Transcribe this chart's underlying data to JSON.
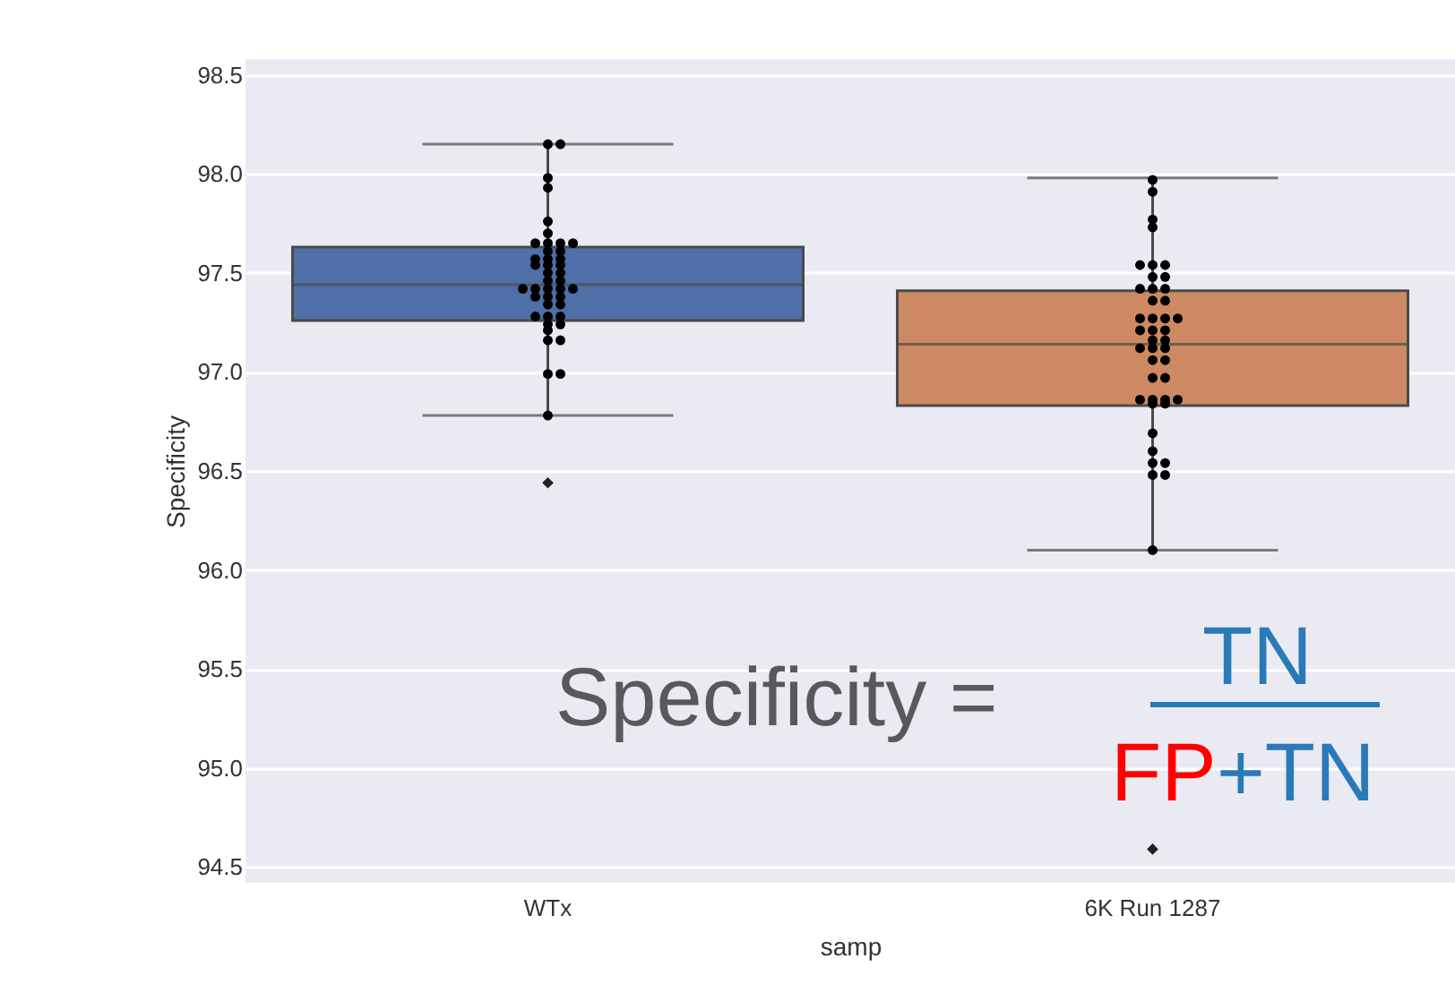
{
  "chart_data": {
    "type": "box",
    "xlabel": "samp",
    "ylabel": "Specificity",
    "categories": [
      "WTx",
      "6K Run 1287"
    ],
    "colors": [
      "#4f6fa8",
      "#cd8a62"
    ],
    "boxes": [
      {
        "low": 96.78,
        "q1": 97.26,
        "median": 97.44,
        "q3": 97.63,
        "high": 98.15,
        "outliers": [
          96.44
        ]
      },
      {
        "low": 96.1,
        "q1": 96.83,
        "median": 97.14,
        "q3": 97.41,
        "high": 97.98,
        "outliers": [
          94.59
        ]
      }
    ],
    "series": [
      {
        "type": "scatter",
        "color": "#000000",
        "x": [
          "WTx",
          "WTx",
          "WTx",
          "WTx",
          "WTx",
          "WTx",
          "WTx",
          "WTx",
          "WTx",
          "WTx",
          "WTx",
          "WTx",
          "WTx",
          "WTx",
          "WTx",
          "WTx",
          "WTx",
          "WTx",
          "WTx",
          "WTx",
          "WTx",
          "WTx",
          "WTx",
          "WTx",
          "WTx",
          "WTx",
          "WTx",
          "WTx",
          "WTx",
          "WTx",
          "WTx",
          "WTx",
          "WTx",
          "WTx",
          "WTx",
          "WTx",
          "WTx",
          "WTx",
          "WTx",
          "WTx",
          "WTx",
          "WTx",
          "WTx",
          "6K Run 1287",
          "6K Run 1287",
          "6K Run 1287",
          "6K Run 1287",
          "6K Run 1287",
          "6K Run 1287",
          "6K Run 1287",
          "6K Run 1287",
          "6K Run 1287",
          "6K Run 1287",
          "6K Run 1287",
          "6K Run 1287",
          "6K Run 1287",
          "6K Run 1287",
          "6K Run 1287",
          "6K Run 1287",
          "6K Run 1287",
          "6K Run 1287",
          "6K Run 1287",
          "6K Run 1287",
          "6K Run 1287",
          "6K Run 1287",
          "6K Run 1287",
          "6K Run 1287",
          "6K Run 1287",
          "6K Run 1287",
          "6K Run 1287",
          "6K Run 1287",
          "6K Run 1287",
          "6K Run 1287",
          "6K Run 1287",
          "6K Run 1287",
          "6K Run 1287",
          "6K Run 1287",
          "6K Run 1287",
          "6K Run 1287",
          "6K Run 1287",
          "6K Run 1287",
          "6K Run 1287",
          "6K Run 1287",
          "6K Run 1287",
          "6K Run 1287",
          "6K Run 1287"
        ],
        "values": [
          98.15,
          98.15,
          97.98,
          97.93,
          97.76,
          97.7,
          97.65,
          97.65,
          97.65,
          97.65,
          97.61,
          97.61,
          97.57,
          97.57,
          97.57,
          97.54,
          97.54,
          97.54,
          97.5,
          97.5,
          97.46,
          97.46,
          97.42,
          97.42,
          97.42,
          97.42,
          97.42,
          97.38,
          97.38,
          97.38,
          97.34,
          97.34,
          97.28,
          97.28,
          97.28,
          97.24,
          97.24,
          97.21,
          97.16,
          97.16,
          96.99,
          96.99,
          96.78,
          97.97,
          97.91,
          97.77,
          97.73,
          97.54,
          97.54,
          97.54,
          97.48,
          97.48,
          97.42,
          97.42,
          97.42,
          97.36,
          97.36,
          97.27,
          97.27,
          97.27,
          97.27,
          97.21,
          97.21,
          97.21,
          97.16,
          97.16,
          97.12,
          97.12,
          97.12,
          97.06,
          97.06,
          96.97,
          96.97,
          96.86,
          96.86,
          96.86,
          96.86,
          96.84,
          96.84,
          96.69,
          96.6,
          96.54,
          96.54,
          96.48,
          96.48,
          96.1
        ]
      }
    ],
    "ylim": [
      94.42,
      98.58
    ],
    "yticks": [
      94.5,
      {
        "value": 95,
        "label": "95.0"
      },
      95.5,
      {
        "value": 96,
        "label": "96.0"
      },
      96.5,
      {
        "value": 97,
        "label": "97.0"
      },
      97.5,
      {
        "value": 98,
        "label": "98.0"
      },
      98.5
    ],
    "grid": "y",
    "annotations": [
      "Specificity =",
      "TN",
      "FP",
      "+TN"
    ]
  }
}
